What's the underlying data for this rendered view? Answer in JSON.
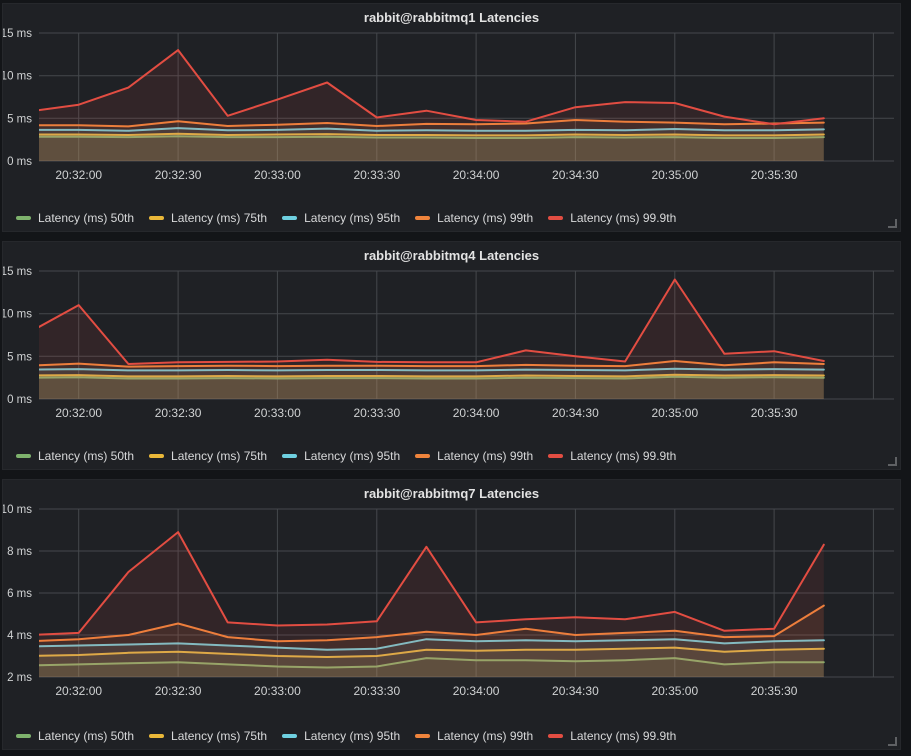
{
  "page": {
    "background": "#131518",
    "panel_background": "#1f2125",
    "grid_color": "#45484d"
  },
  "chart_data": [
    {
      "type": "area",
      "title": "rabbit@rabbitmq1 Latencies",
      "xlabel": "",
      "ylabel": "",
      "y_unit": "ms",
      "ylim": [
        0,
        15
      ],
      "y_ticks": [
        0,
        5,
        10,
        15
      ],
      "grid": true,
      "legend_position": "bottom",
      "x_domain": [
        "20:31:48",
        "20:36:05"
      ],
      "x_ticks": [
        "20:32:00",
        "20:32:30",
        "20:33:00",
        "20:33:30",
        "20:34:00",
        "20:34:30",
        "20:35:00",
        "20:35:30"
      ],
      "x_grid_extra": [
        "20:36:00"
      ],
      "x_times": [
        "20:31:45",
        "20:32:00",
        "20:32:15",
        "20:32:30",
        "20:32:45",
        "20:33:00",
        "20:33:15",
        "20:33:30",
        "20:33:45",
        "20:34:00",
        "20:34:15",
        "20:34:30",
        "20:34:45",
        "20:35:00",
        "20:35:15",
        "20:35:30",
        "20:35:45"
      ],
      "series": [
        {
          "name": "Latency (ms) 50th",
          "color": "#7eb26d",
          "values": [
            2.85,
            2.85,
            2.8,
            2.9,
            2.8,
            2.8,
            2.85,
            2.75,
            2.75,
            2.7,
            2.7,
            2.8,
            2.75,
            2.8,
            2.7,
            2.7,
            2.8
          ]
        },
        {
          "name": "Latency (ms) 75th",
          "color": "#eab839",
          "values": [
            3.1,
            3.1,
            3.05,
            3.2,
            3.05,
            3.1,
            3.15,
            3.05,
            3.05,
            3.0,
            3.0,
            3.1,
            3.05,
            3.1,
            3.0,
            3.0,
            3.1
          ]
        },
        {
          "name": "Latency (ms) 95th",
          "color": "#6ed0e0",
          "values": [
            3.65,
            3.65,
            3.55,
            3.85,
            3.6,
            3.65,
            3.8,
            3.55,
            3.6,
            3.55,
            3.55,
            3.65,
            3.6,
            3.75,
            3.6,
            3.6,
            3.7
          ]
        },
        {
          "name": "Latency (ms) 99th",
          "color": "#ef843c",
          "values": [
            4.2,
            4.2,
            4.05,
            4.65,
            4.1,
            4.25,
            4.45,
            4.1,
            4.35,
            4.3,
            4.4,
            4.8,
            4.6,
            4.5,
            4.3,
            4.4,
            4.5
          ]
        },
        {
          "name": "Latency (ms) 99.9th",
          "color": "#e24d42",
          "values": [
            5.8,
            6.6,
            8.6,
            13.0,
            5.3,
            7.2,
            9.2,
            5.1,
            5.9,
            4.8,
            4.6,
            6.3,
            6.9,
            6.8,
            5.2,
            4.3,
            5.0
          ]
        }
      ]
    },
    {
      "type": "area",
      "title": "rabbit@rabbitmq4 Latencies",
      "xlabel": "",
      "ylabel": "",
      "y_unit": "ms",
      "ylim": [
        0,
        15
      ],
      "y_ticks": [
        0,
        5,
        10,
        15
      ],
      "grid": true,
      "legend_position": "bottom",
      "x_domain": [
        "20:31:48",
        "20:36:05"
      ],
      "x_ticks": [
        "20:32:00",
        "20:32:30",
        "20:33:00",
        "20:33:30",
        "20:34:00",
        "20:34:30",
        "20:35:00",
        "20:35:30"
      ],
      "x_grid_extra": [
        "20:36:00"
      ],
      "x_times": [
        "20:31:45",
        "20:32:00",
        "20:32:15",
        "20:32:30",
        "20:32:45",
        "20:33:00",
        "20:33:15",
        "20:33:30",
        "20:33:45",
        "20:34:00",
        "20:34:15",
        "20:34:30",
        "20:34:45",
        "20:35:00",
        "20:35:15",
        "20:35:30",
        "20:35:45"
      ],
      "series": [
        {
          "name": "Latency (ms) 50th",
          "color": "#7eb26d",
          "values": [
            2.5,
            2.55,
            2.4,
            2.4,
            2.45,
            2.4,
            2.45,
            2.45,
            2.4,
            2.4,
            2.5,
            2.45,
            2.4,
            2.6,
            2.5,
            2.55,
            2.5
          ]
        },
        {
          "name": "Latency (ms) 75th",
          "color": "#eab839",
          "values": [
            2.75,
            2.8,
            2.65,
            2.65,
            2.7,
            2.65,
            2.7,
            2.7,
            2.65,
            2.65,
            2.75,
            2.7,
            2.65,
            2.85,
            2.75,
            2.8,
            2.75
          ]
        },
        {
          "name": "Latency (ms) 95th",
          "color": "#6ed0e0",
          "values": [
            3.45,
            3.5,
            3.35,
            3.35,
            3.4,
            3.35,
            3.4,
            3.4,
            3.35,
            3.35,
            3.45,
            3.4,
            3.35,
            3.55,
            3.45,
            3.5,
            3.45
          ]
        },
        {
          "name": "Latency (ms) 99th",
          "color": "#ef843c",
          "values": [
            3.9,
            4.15,
            3.8,
            3.85,
            3.9,
            3.85,
            3.9,
            3.9,
            3.85,
            3.85,
            4.0,
            3.9,
            3.85,
            4.45,
            3.95,
            4.3,
            4.1
          ]
        },
        {
          "name": "Latency (ms) 99.9th",
          "color": "#e24d42",
          "values": [
            7.8,
            11.0,
            4.1,
            4.3,
            4.35,
            4.4,
            4.6,
            4.35,
            4.3,
            4.3,
            5.7,
            5.0,
            4.4,
            14.0,
            5.3,
            5.6,
            4.45
          ]
        }
      ]
    },
    {
      "type": "area",
      "title": "rabbit@rabbitmq7 Latencies",
      "xlabel": "",
      "ylabel": "",
      "y_unit": "ms",
      "ylim": [
        2,
        10
      ],
      "y_ticks": [
        2,
        4,
        6,
        8,
        10
      ],
      "grid": true,
      "legend_position": "bottom",
      "x_domain": [
        "20:31:48",
        "20:36:05"
      ],
      "x_ticks": [
        "20:32:00",
        "20:32:30",
        "20:33:00",
        "20:33:30",
        "20:34:00",
        "20:34:30",
        "20:35:00",
        "20:35:30"
      ],
      "x_grid_extra": [
        "20:36:00"
      ],
      "x_times": [
        "20:31:45",
        "20:32:00",
        "20:32:15",
        "20:32:30",
        "20:32:45",
        "20:33:00",
        "20:33:15",
        "20:33:30",
        "20:33:45",
        "20:34:00",
        "20:34:15",
        "20:34:30",
        "20:34:45",
        "20:35:00",
        "20:35:15",
        "20:35:30",
        "20:35:45"
      ],
      "series": [
        {
          "name": "Latency (ms) 50th",
          "color": "#7eb26d",
          "values": [
            2.55,
            2.6,
            2.65,
            2.7,
            2.6,
            2.5,
            2.45,
            2.5,
            2.9,
            2.8,
            2.8,
            2.75,
            2.8,
            2.9,
            2.6,
            2.7,
            2.7
          ]
        },
        {
          "name": "Latency (ms) 75th",
          "color": "#eab839",
          "values": [
            3.0,
            3.05,
            3.15,
            3.2,
            3.1,
            3.0,
            2.95,
            3.0,
            3.3,
            3.25,
            3.3,
            3.3,
            3.35,
            3.4,
            3.2,
            3.3,
            3.35
          ]
        },
        {
          "name": "Latency (ms) 95th",
          "color": "#6ed0e0",
          "values": [
            3.45,
            3.5,
            3.55,
            3.6,
            3.5,
            3.4,
            3.3,
            3.35,
            3.8,
            3.7,
            3.75,
            3.7,
            3.75,
            3.8,
            3.6,
            3.7,
            3.75
          ]
        },
        {
          "name": "Latency (ms) 99th",
          "color": "#ef843c",
          "values": [
            3.7,
            3.8,
            4.0,
            4.55,
            3.9,
            3.7,
            3.75,
            3.9,
            4.15,
            4.0,
            4.3,
            4.0,
            4.1,
            4.2,
            3.9,
            3.95,
            5.4
          ]
        },
        {
          "name": "Latency (ms) 99.9th",
          "color": "#e24d42",
          "values": [
            4.0,
            4.1,
            7.0,
            8.9,
            4.6,
            4.45,
            4.5,
            4.65,
            8.2,
            4.6,
            4.75,
            4.85,
            4.75,
            5.1,
            4.2,
            4.3,
            8.3
          ]
        }
      ]
    }
  ]
}
